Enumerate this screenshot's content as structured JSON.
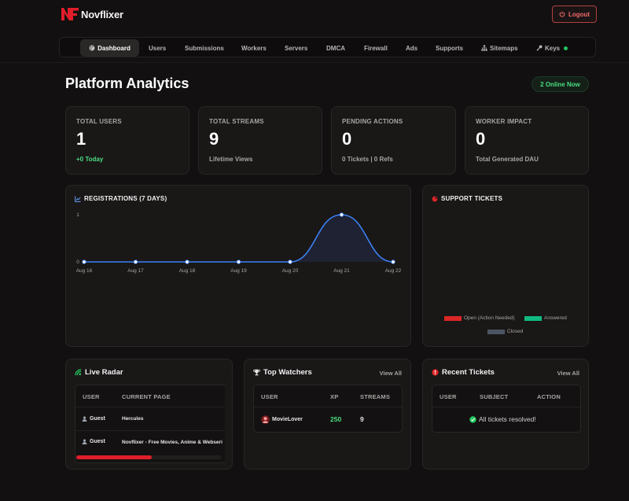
{
  "app": {
    "name": "Novflixer",
    "logout_label": "Logout"
  },
  "nav": {
    "items": [
      {
        "label": "Dashboard",
        "active": true,
        "icon": "palette-icon"
      },
      {
        "label": "Users"
      },
      {
        "label": "Submissions"
      },
      {
        "label": "Workers"
      },
      {
        "label": "Servers"
      },
      {
        "label": "DMCA"
      },
      {
        "label": "Firewall"
      },
      {
        "label": "Ads"
      },
      {
        "label": "Supports"
      },
      {
        "label": "Sitemaps",
        "icon": "sitemap-icon"
      },
      {
        "label": "Keys",
        "icon": "key-icon",
        "status": "online"
      }
    ]
  },
  "header": {
    "title": "Platform Analytics",
    "online_badge": "2 Online Now"
  },
  "stats": [
    {
      "label": "TOTAL USERS",
      "value": "1",
      "sub": "+0 Today"
    },
    {
      "label": "TOTAL STREAMS",
      "value": "9",
      "sub": "Lifetime Views"
    },
    {
      "label": "PENDING ACTIONS",
      "value": "0",
      "sub": "0 Tickets | 0 Refs"
    },
    {
      "label": "WORKER IMPACT",
      "value": "0",
      "sub": "Total Generated DAU"
    }
  ],
  "registrations": {
    "title": "REGISTRATIONS (7 DAYS)",
    "chart_data": {
      "type": "area",
      "categories": [
        "Aug 16",
        "Aug 17",
        "Aug 18",
        "Aug 19",
        "Aug 20",
        "Aug 21",
        "Aug 22"
      ],
      "values": [
        0,
        0,
        0,
        0,
        0,
        1,
        0
      ],
      "ylim": [
        0,
        1
      ],
      "yticks": [
        "0",
        "1"
      ],
      "line_color": "#3b82f6",
      "fill_color": "#1e2233",
      "grid": false
    }
  },
  "support_tickets": {
    "title": "SUPPORT TICKETS",
    "legend": [
      {
        "label": "Open (Action Needed)",
        "color": "#dc2626"
      },
      {
        "label": "Answered",
        "color": "#10b981"
      },
      {
        "label": "Closed",
        "color": "#4b5563"
      }
    ]
  },
  "live_radar": {
    "title": "Live Radar",
    "columns": [
      "USER",
      "CURRENT PAGE"
    ],
    "rows": [
      {
        "user": "Guest",
        "page": "Hercules"
      },
      {
        "user": "Guest",
        "page": "Novflixer - Free Movies, Anime & Webseri"
      }
    ],
    "scroll_fraction": 0.52
  },
  "top_watchers": {
    "title": "Top Watchers",
    "view_all": "View All",
    "columns": [
      "USER",
      "XP",
      "STREAMS"
    ],
    "rows": [
      {
        "user": "MovieLover",
        "xp": "250",
        "streams": "9"
      }
    ]
  },
  "recent_tickets": {
    "title": "Recent Tickets",
    "view_all": "View All",
    "columns": [
      "USER",
      "SUBJECT",
      "ACTION"
    ],
    "empty_message": "All tickets resolved!"
  },
  "colors": {
    "accent_red": "#e11d2a",
    "online_green": "#4ade80",
    "card_bg": "#1a1717",
    "page_bg": "#121010"
  }
}
